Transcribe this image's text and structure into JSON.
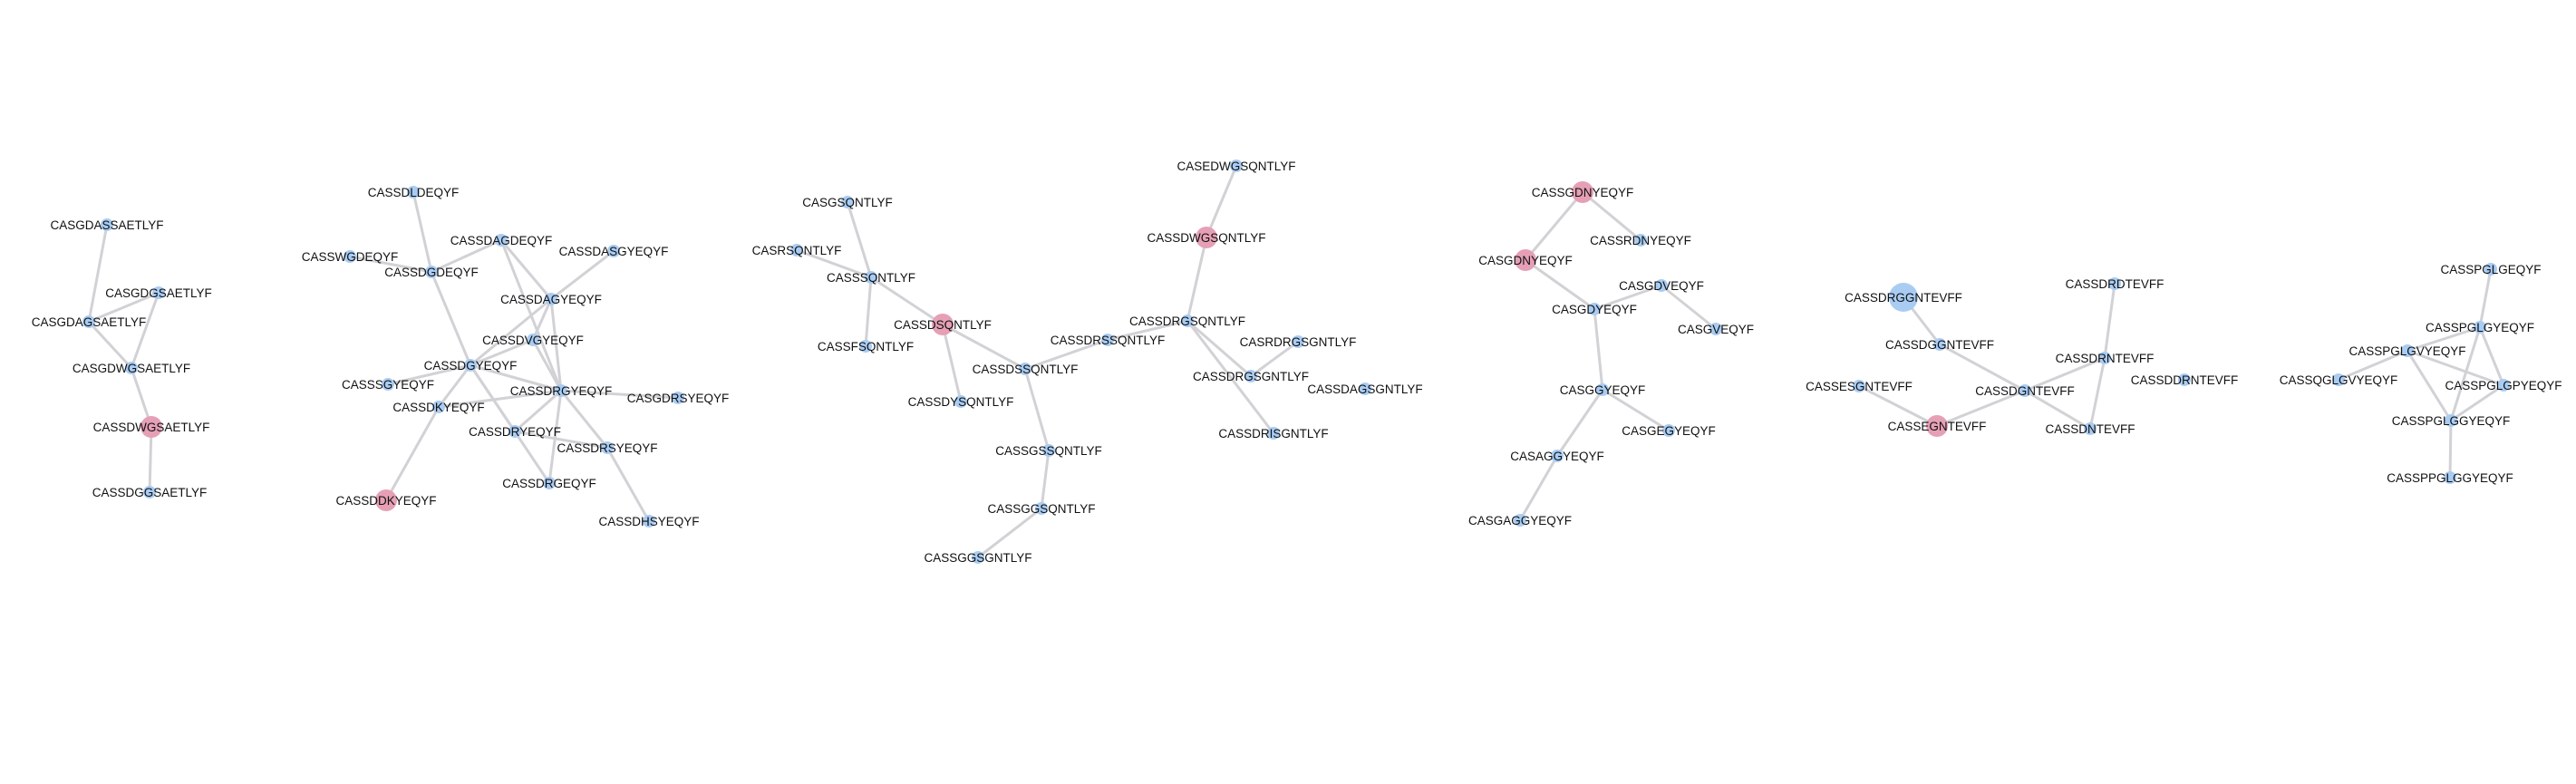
{
  "colors": {
    "default_node": "#a9ccf3",
    "highlight_node": "#e6a0b6",
    "edge": "#d2d2d6",
    "label": "#111111"
  },
  "nodes": [
    {
      "id": "CASGDASSAETLYF",
      "label": "CASGDASSAETLYF",
      "type": "default"
    },
    {
      "id": "CASGDGSAETLYF",
      "label": "CASGDGSAETLYF",
      "type": "default"
    },
    {
      "id": "CASGDAGSAETLYF",
      "label": "CASGDAGSAETLYF",
      "type": "default"
    },
    {
      "id": "CASGDWGSAETLYF",
      "label": "CASGDWGSAETLYF",
      "type": "default"
    },
    {
      "id": "CASSDWGSAETLYF",
      "label": "CASSDWGSAETLYF",
      "type": "highlight"
    },
    {
      "id": "CASSDGGSAETLYF",
      "label": "CASSDGGSAETLYF",
      "type": "default"
    },
    {
      "id": "CASSDLDEQYF",
      "label": "CASSDLDEQYF",
      "type": "default"
    },
    {
      "id": "CASSWGDEQYF",
      "label": "CASSWGDEQYF",
      "type": "default"
    },
    {
      "id": "CASSDGDEQYF",
      "label": "CASSDGDEQYF",
      "type": "default"
    },
    {
      "id": "CASSDAGDEQYF",
      "label": "CASSDAGDEQYF",
      "type": "default"
    },
    {
      "id": "CASSDASGYEQYF",
      "label": "CASSDASGYEQYF",
      "type": "default"
    },
    {
      "id": "CASSDAGYEQYF",
      "label": "CASSDAGYEQYF",
      "type": "default"
    },
    {
      "id": "CASSDVGYEQYF",
      "label": "CASSDVGYEQYF",
      "type": "default"
    },
    {
      "id": "CASSDGYEQYF",
      "label": "CASSDGYEQYF",
      "type": "default"
    },
    {
      "id": "CASSSGYEQYF",
      "label": "CASSSGYEQYF",
      "type": "default"
    },
    {
      "id": "CASSDRGYEQYF",
      "label": "CASSDRGYEQYF",
      "type": "default"
    },
    {
      "id": "CASSDKYEQYF",
      "label": "CASSDKYEQYF",
      "type": "default"
    },
    {
      "id": "CASGDRSYEQYF",
      "label": "CASGDRSYEQYF",
      "type": "default"
    },
    {
      "id": "CASSDRYEQYF",
      "label": "CASSDRYEQYF",
      "type": "default"
    },
    {
      "id": "CASSDRSYEQYF",
      "label": "CASSDRSYEQYF",
      "type": "default"
    },
    {
      "id": "CASSDRGEQYF",
      "label": "CASSDRGEQYF",
      "type": "default"
    },
    {
      "id": "CASSDKYEQYF_2",
      "label": "CASSDDKYEQYF",
      "type": "highlight"
    },
    {
      "id": "CASSDHSYEQYF",
      "label": "CASSDHSYEQYF",
      "type": "default"
    },
    {
      "id": "CASGSQNTLYF",
      "label": "CASGSQNTLYF",
      "type": "default"
    },
    {
      "id": "CASRSQNTLYF",
      "label": "CASRSQNTLYF",
      "type": "default"
    },
    {
      "id": "CASSSQNTLYF",
      "label": "CASSSQNTLYF",
      "type": "default"
    },
    {
      "id": "CASSDSQNTLYF",
      "label": "CASSDSQNTLYF",
      "type": "highlight"
    },
    {
      "id": "CASSFSQNTLYF",
      "label": "CASSFSQNTLYF",
      "type": "default"
    },
    {
      "id": "CASSDRSSQNTLYF",
      "label": "CASSDRSSQNTLYF",
      "type": "default"
    },
    {
      "id": "CASSDSSQNTLYF",
      "label": "CASSDSSQNTLYF",
      "type": "default"
    },
    {
      "id": "CASSDYSQNTLYF",
      "label": "CASSDYSQNTLYF",
      "type": "default"
    },
    {
      "id": "CASSGSSQNTLYF",
      "label": "CASSGSSQNTLYF",
      "type": "default"
    },
    {
      "id": "CASSGGSQNTLYF",
      "label": "CASSGGSQNTLYF",
      "type": "default"
    },
    {
      "id": "CASSGGSGNTLYF",
      "label": "CASSGGSGNTLYF",
      "type": "default"
    },
    {
      "id": "CASEDWGSQNTLYF",
      "label": "CASEDWGSQNTLYF",
      "type": "default"
    },
    {
      "id": "CASSDWGSQNTLYF",
      "label": "CASSDWGSQNTLYF",
      "type": "highlight"
    },
    {
      "id": "CASSDRGSQNTLYF",
      "label": "CASSDRGSQNTLYF",
      "type": "default"
    },
    {
      "id": "CASRDRGSGNTLYF",
      "label": "CASRDRGSGNTLYF",
      "type": "default"
    },
    {
      "id": "CASSDRGSGNTLYF",
      "label": "CASSDRGSGNTLYF",
      "type": "default"
    },
    {
      "id": "CASSDAGSGNTLYF",
      "label": "CASSDAGSGNTLYF",
      "type": "default"
    },
    {
      "id": "CASSDRISGNTLYF",
      "label": "CASSDRISGNTLYF",
      "type": "default"
    },
    {
      "id": "CASSGDNYEQYF",
      "label": "CASSGDNYEQYF",
      "type": "highlight"
    },
    {
      "id": "CASSRDNYEQYF",
      "label": "CASSRDNYEQYF",
      "type": "default"
    },
    {
      "id": "CASGDNYEQYF",
      "label": "CASGDNYEQYF",
      "type": "highlight"
    },
    {
      "id": "CASGDVEQYF",
      "label": "CASGDVEQYF",
      "type": "default"
    },
    {
      "id": "CASGDYEQYF",
      "label": "CASGDYEQYF",
      "type": "default"
    },
    {
      "id": "CASGVEQYF",
      "label": "CASGVEQYF",
      "type": "default"
    },
    {
      "id": "CASGGYEQYF",
      "label": "CASGGYEQYF",
      "type": "default"
    },
    {
      "id": "CASGEGYEQYF",
      "label": "CASGEGYEQYF",
      "type": "default"
    },
    {
      "id": "CASAGGYEQYF",
      "label": "CASAGGYEQYF",
      "type": "default"
    },
    {
      "id": "CASGAGGYEQYF",
      "label": "CASGAGGYEQYF",
      "type": "default"
    },
    {
      "id": "CASSDRGGNTEVFF",
      "label": "CASSDRGGNTEVFF",
      "type": "default_large"
    },
    {
      "id": "CASSDGGNTEVFF",
      "label": "CASSDGGNTEVFF",
      "type": "default"
    },
    {
      "id": "CASSESGNTEVFF",
      "label": "CASSESGNTEVFF",
      "type": "default"
    },
    {
      "id": "CASSEGNTEVFF",
      "label": "CASSEGNTEVFF",
      "type": "highlight"
    },
    {
      "id": "CASSDGNTEVFF",
      "label": "CASSDGNTEVFF",
      "type": "default"
    },
    {
      "id": "CASSDRDTEVFF",
      "label": "CASSDRDTEVFF",
      "type": "default"
    },
    {
      "id": "CASSDRNTEVFF",
      "label": "CASSDRNTEVFF",
      "type": "default"
    },
    {
      "id": "CASSDDRNTEVFF",
      "label": "CASSDDRNTEVFF",
      "type": "default"
    },
    {
      "id": "CASSDNTEVFF",
      "label": "CASSDNTEVFF",
      "type": "default"
    },
    {
      "id": "CASSPGLGEQYF",
      "label": "CASSPGLGEQYF",
      "type": "default"
    },
    {
      "id": "CASSPGLGYEQYF",
      "label": "CASSPGLGYEQYF",
      "type": "default"
    },
    {
      "id": "CASSPGLGVYEQYF",
      "label": "CASSPGLGVYEQYF",
      "type": "default"
    },
    {
      "id": "CASSQGLGVYEQYF",
      "label": "CASSQGLGVYEQYF",
      "type": "default"
    },
    {
      "id": "CASSPGLGPYEQYF",
      "label": "CASSPGLGPYEQYF",
      "type": "default"
    },
    {
      "id": "CASSPGLGGYEQYF",
      "label": "CASSPGLGGYEQYF",
      "type": "default"
    },
    {
      "id": "CASSPPGLGGYEQYF",
      "label": "CASSPPGLGGYEQYF",
      "type": "default"
    }
  ],
  "edges": [
    [
      "CASGDASSAETLYF",
      "CASGDAGSAETLYF"
    ],
    [
      "CASGDGSAETLYF",
      "CASGDAGSAETLYF"
    ],
    [
      "CASGDGSAETLYF",
      "CASGDWGSAETLYF"
    ],
    [
      "CASGDAGSAETLYF",
      "CASGDWGSAETLYF"
    ],
    [
      "CASGDWGSAETLYF",
      "CASSDWGSAETLYF"
    ],
    [
      "CASSDWGSAETLYF",
      "CASSDGGSAETLYF"
    ],
    [
      "CASSDLDEQYF",
      "CASSDGDEQYF"
    ],
    [
      "CASSWGDEQYF",
      "CASSDGDEQYF"
    ],
    [
      "CASSDGDEQYF",
      "CASSDAGDEQYF"
    ],
    [
      "CASSDGDEQYF",
      "CASSDGYEQYF"
    ],
    [
      "CASSDAGDEQYF",
      "CASSDAGYEQYF"
    ],
    [
      "CASSDAGDEQYF",
      "CASSDRGYEQYF"
    ],
    [
      "CASSDASGYEQYF",
      "CASSDAGYEQYF"
    ],
    [
      "CASSDAGYEQYF",
      "CASSDGYEQYF"
    ],
    [
      "CASSDAGYEQYF",
      "CASSDVGYEQYF"
    ],
    [
      "CASSDAGYEQYF",
      "CASSDRGYEQYF"
    ],
    [
      "CASSDVGYEQYF",
      "CASSDGYEQYF"
    ],
    [
      "CASSDVGYEQYF",
      "CASSDRGYEQYF"
    ],
    [
      "CASSDGYEQYF",
      "CASSSGYEQYF"
    ],
    [
      "CASSDGYEQYF",
      "CASSDKYEQYF"
    ],
    [
      "CASSDGYEQYF",
      "CASSDRGYEQYF"
    ],
    [
      "CASSDGYEQYF",
      "CASSDRYEQYF"
    ],
    [
      "CASSDGYEQYF",
      "CASSDRGEQYF"
    ],
    [
      "CASSDKYEQYF",
      "CASSDKYEQYF_2"
    ],
    [
      "CASSDRGYEQYF",
      "CASGDRSYEQYF"
    ],
    [
      "CASSDRGYEQYF",
      "CASSDRYEQYF"
    ],
    [
      "CASSDRGYEQYF",
      "CASSDRSYEQYF"
    ],
    [
      "CASSDRGYEQYF",
      "CASSDRGEQYF"
    ],
    [
      "CASSDRGYEQYF",
      "CASSDKYEQYF"
    ],
    [
      "CASSDRSYEQYF",
      "CASSDHSYEQYF"
    ],
    [
      "CASSDRSYEQYF",
      "CASSDRYEQYF"
    ],
    [
      "CASGSQNTLYF",
      "CASSSQNTLYF"
    ],
    [
      "CASRSQNTLYF",
      "CASSSQNTLYF"
    ],
    [
      "CASSSQNTLYF",
      "CASSDSQNTLYF"
    ],
    [
      "CASSSQNTLYF",
      "CASSFSQNTLYF"
    ],
    [
      "CASSDSQNTLYF",
      "CASSDYSQNTLYF"
    ],
    [
      "CASSDSQNTLYF",
      "CASSDSSQNTLYF"
    ],
    [
      "CASSDSSQNTLYF",
      "CASSDRSSQNTLYF"
    ],
    [
      "CASSDSSQNTLYF",
      "CASSGSSQNTLYF"
    ],
    [
      "CASSDRSSQNTLYF",
      "CASSDRGSQNTLYF"
    ],
    [
      "CASSGSSQNTLYF",
      "CASSGGSQNTLYF"
    ],
    [
      "CASSGGSQNTLYF",
      "CASSGGSGNTLYF"
    ],
    [
      "CASEDWGSQNTLYF",
      "CASSDWGSQNTLYF"
    ],
    [
      "CASSDWGSQNTLYF",
      "CASSDRGSQNTLYF"
    ],
    [
      "CASSDRGSQNTLYF",
      "CASSDRGSGNTLYF"
    ],
    [
      "CASSDRGSQNTLYF",
      "CASSDRISGNTLYF"
    ],
    [
      "CASRDRGSGNTLYF",
      "CASSDRGSGNTLYF"
    ],
    [
      "CASSGDNYEQYF",
      "CASSRDNYEQYF"
    ],
    [
      "CASSGDNYEQYF",
      "CASGDNYEQYF"
    ],
    [
      "CASGDNYEQYF",
      "CASGDYEQYF"
    ],
    [
      "CASGDVEQYF",
      "CASGDYEQYF"
    ],
    [
      "CASGDVEQYF",
      "CASGVEQYF"
    ],
    [
      "CASGDYEQYF",
      "CASGGYEQYF"
    ],
    [
      "CASGGYEQYF",
      "CASGEGYEQYF"
    ],
    [
      "CASGGYEQYF",
      "CASAGGYEQYF"
    ],
    [
      "CASAGGYEQYF",
      "CASGAGGYEQYF"
    ],
    [
      "CASSDRGGNTEVFF",
      "CASSDGGNTEVFF"
    ],
    [
      "CASSDGGNTEVFF",
      "CASSDGNTEVFF"
    ],
    [
      "CASSESGNTEVFF",
      "CASSEGNTEVFF"
    ],
    [
      "CASSEGNTEVFF",
      "CASSDGNTEVFF"
    ],
    [
      "CASSDGNTEVFF",
      "CASSDRNTEVFF"
    ],
    [
      "CASSDGNTEVFF",
      "CASSDNTEVFF"
    ],
    [
      "CASSDRDTEVFF",
      "CASSDRNTEVFF"
    ],
    [
      "CASSDRNTEVFF",
      "CASSDNTEVFF"
    ],
    [
      "CASSPGLGEQYF",
      "CASSPGLGYEQYF"
    ],
    [
      "CASSPGLGYEQYF",
      "CASSPGLGVYEQYF"
    ],
    [
      "CASSPGLGYEQYF",
      "CASSPGLGPYEQYF"
    ],
    [
      "CASSPGLGYEQYF",
      "CASSPGLGGYEQYF"
    ],
    [
      "CASSPGLGVYEQYF",
      "CASSQGLGVYEQYF"
    ],
    [
      "CASSPGLGVYEQYF",
      "CASSPGLGGYEQYF"
    ],
    [
      "CASSPGLGVYEQYF",
      "CASSPGLGPYEQYF"
    ],
    [
      "CASSPGLGPYEQYF",
      "CASSPGLGGYEQYF"
    ],
    [
      "CASSPGLGGYEQYF",
      "CASSPPGLGGYEQYF"
    ]
  ]
}
